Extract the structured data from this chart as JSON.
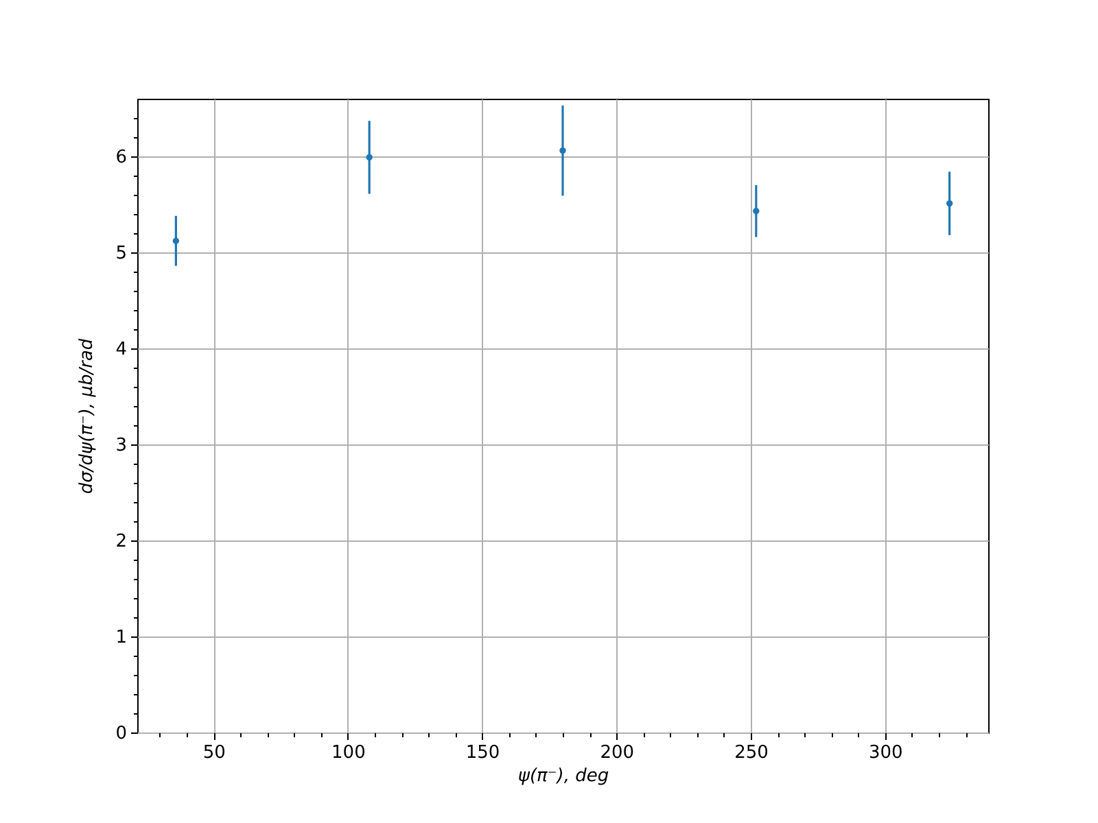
{
  "chart_data": {
    "type": "scatter",
    "xlabel": "ψ(π⁻), deg",
    "ylabel": "dσ/dψ(π⁻), μb/rad",
    "x": [
      36,
      108,
      180,
      252,
      324
    ],
    "series": [
      {
        "color": "#1f77b4",
        "values": [
          5.12,
          5.99,
          6.06,
          5.43,
          5.51
        ],
        "errors": [
          0.26,
          0.38,
          0.47,
          0.27,
          0.33
        ]
      }
    ],
    "xlim": [
      21.6,
      338.4
    ],
    "ylim": [
      0,
      6.6
    ],
    "xticks": [
      {
        "value": 30,
        "label": null
      },
      {
        "value": 40,
        "label": null
      },
      50,
      {
        "value": 60,
        "label": null
      },
      {
        "value": 70,
        "label": null
      },
      {
        "value": 80,
        "label": null
      },
      {
        "value": 90,
        "label": null
      },
      100,
      {
        "value": 110,
        "label": null
      },
      {
        "value": 120,
        "label": null
      },
      {
        "value": 130,
        "label": null
      },
      {
        "value": 140,
        "label": null
      },
      150,
      {
        "value": 160,
        "label": null
      },
      {
        "value": 170,
        "label": null
      },
      {
        "value": 180,
        "label": null
      },
      {
        "value": 190,
        "label": null
      },
      200,
      {
        "value": 210,
        "label": null
      },
      {
        "value": 220,
        "label": null
      },
      {
        "value": 230,
        "label": null
      },
      {
        "value": 240,
        "label": null
      },
      250,
      {
        "value": 260,
        "label": null
      },
      {
        "value": 270,
        "label": null
      },
      {
        "value": 280,
        "label": null
      },
      {
        "value": 290,
        "label": null
      },
      300,
      {
        "value": 310,
        "label": null
      },
      {
        "value": 320,
        "label": null
      },
      {
        "value": 330,
        "label": null
      }
    ],
    "yticks": [
      0,
      {
        "value": 0.2,
        "label": null
      },
      {
        "value": 0.4,
        "label": null
      },
      {
        "value": 0.6,
        "label": null
      },
      {
        "value": 0.8,
        "label": null
      },
      1,
      {
        "value": 1.2,
        "label": null
      },
      {
        "value": 1.4,
        "label": null
      },
      {
        "value": 1.6,
        "label": null
      },
      {
        "value": 1.8,
        "label": null
      },
      2,
      {
        "value": 2.2,
        "label": null
      },
      {
        "value": 2.4,
        "label": null
      },
      {
        "value": 2.6,
        "label": null
      },
      {
        "value": 2.8,
        "label": null
      },
      3,
      {
        "value": 3.2,
        "label": null
      },
      {
        "value": 3.4,
        "label": null
      },
      {
        "value": 3.6,
        "label": null
      },
      {
        "value": 3.8,
        "label": null
      },
      4,
      {
        "value": 4.2,
        "label": null
      },
      {
        "value": 4.4,
        "label": null
      },
      {
        "value": 4.6,
        "label": null
      },
      {
        "value": 4.8,
        "label": null
      },
      5,
      {
        "value": 5.2,
        "label": null
      },
      {
        "value": 5.4,
        "label": null
      },
      {
        "value": 5.6,
        "label": null
      },
      {
        "value": 5.8,
        "label": null
      },
      6,
      {
        "value": 6.2,
        "label": null
      },
      {
        "value": 6.4,
        "label": null
      }
    ],
    "grid": true,
    "marker": "circle"
  }
}
